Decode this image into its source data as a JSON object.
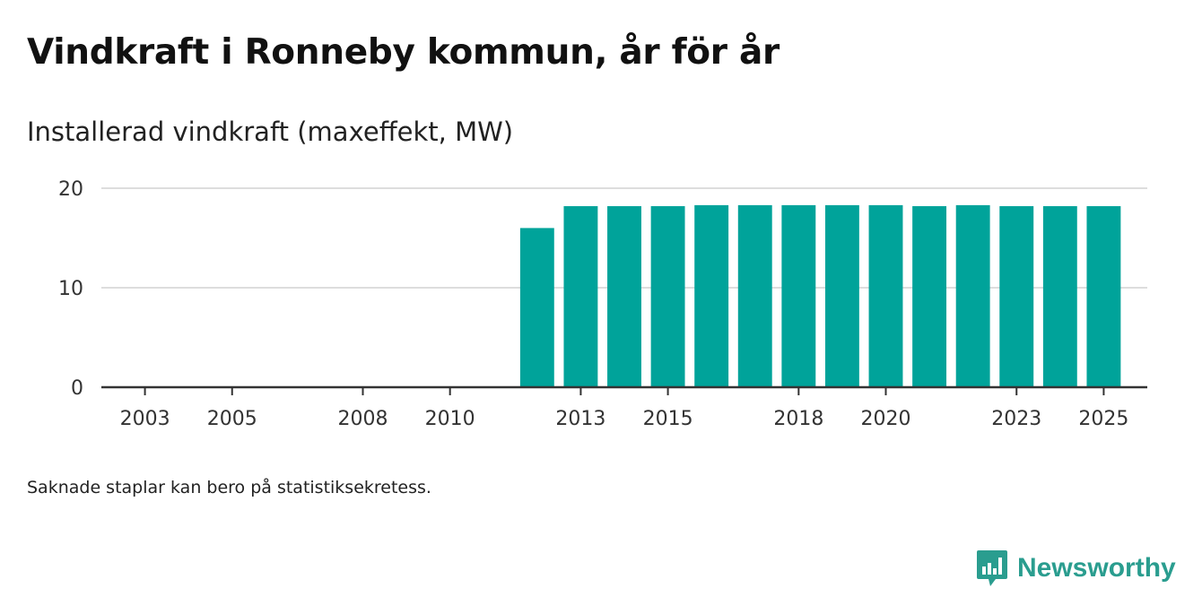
{
  "title": "Vindkraft i Ronneby kommun, år för år",
  "subtitle": "Installerad vindkraft (maxeffekt, MW)",
  "note": "Saknade staplar kan bero på statistiksekretess.",
  "brand": {
    "name": "Newsworthy",
    "color": "#2a9d8f",
    "icon": "newsworthy-logo-icon"
  },
  "chart_data": {
    "type": "bar",
    "title": "Vindkraft i Ronneby kommun, år för år",
    "subtitle": "Installerad vindkraft (maxeffekt, MW)",
    "xlabel": "",
    "ylabel": "Installerad vindkraft (maxeffekt, MW)",
    "ylim": [
      0,
      20
    ],
    "yticks": [
      0,
      10,
      20
    ],
    "xlim": [
      2002,
      2026
    ],
    "xticks": [
      2003,
      2005,
      2008,
      2010,
      2013,
      2015,
      2018,
      2020,
      2023,
      2025
    ],
    "grid": true,
    "bar_color": "#00a39a",
    "categories": [
      2012,
      2013,
      2014,
      2015,
      2016,
      2017,
      2018,
      2019,
      2020,
      2021,
      2022,
      2023,
      2024,
      2025
    ],
    "values": [
      16.0,
      18.2,
      18.2,
      18.2,
      18.3,
      18.3,
      18.3,
      18.3,
      18.3,
      18.2,
      18.3,
      18.2,
      18.2,
      18.2
    ]
  }
}
